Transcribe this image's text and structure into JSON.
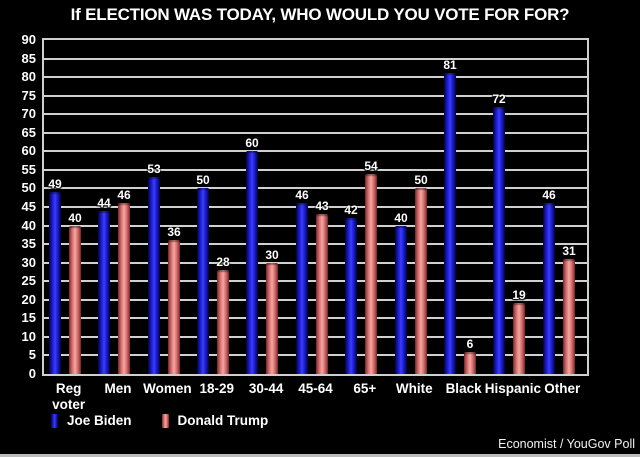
{
  "title": "If ELECTION WAS TODAY, WHO WOULD YOU VOTE FOR FOR?",
  "credit": "Economist / YouGov Poll",
  "colors": {
    "background": "#000000",
    "text": "#ffffff",
    "grid": "#d0d0d0",
    "biden_blue": "#3c3cff",
    "trump_red": "#f6a6a1"
  },
  "legend": {
    "items": [
      {
        "label": "Joe Biden",
        "series": "biden"
      },
      {
        "label": "Donald Trump",
        "series": "trump"
      }
    ]
  },
  "chart_data": {
    "type": "bar",
    "title": "If ELECTION WAS TODAY, WHO WOULD YOU VOTE FOR FOR?",
    "categories": [
      "Reg voter",
      "Men",
      "Women",
      "18-29",
      "30-44",
      "45-64",
      "65+",
      "White",
      "Black",
      "Hispanic",
      "Other"
    ],
    "series": [
      {
        "name": "Joe Biden",
        "color": "#3c3cff",
        "values": [
          49,
          44,
          53,
          50,
          60,
          46,
          42,
          40,
          81,
          72,
          46
        ]
      },
      {
        "name": "Donald Trump",
        "color": "#f6a6a1",
        "values": [
          40,
          46,
          36,
          28,
          30,
          43,
          54,
          50,
          6,
          19,
          31
        ]
      }
    ],
    "xlabel": "",
    "ylabel": "",
    "ylim": [
      0,
      90
    ],
    "ytick_step": 5,
    "grid": true,
    "value_labels": true,
    "legend_position": "bottom-left"
  }
}
